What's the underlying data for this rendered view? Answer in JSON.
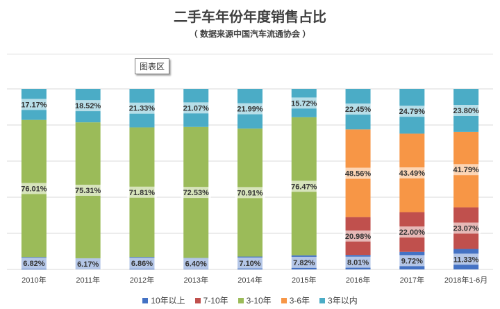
{
  "chart_data": {
    "type": "bar",
    "stacked": true,
    "title": "二手车年份年度销售占比",
    "subtitle": "（ 数据来源中国汽车流通协会 ）",
    "categories": [
      "2010年",
      "2011年",
      "2012年",
      "2013年",
      "2014年",
      "2015年",
      "2016年",
      "2017年",
      "2018年1-6月"
    ],
    "series": [
      {
        "name": "10年以上",
        "color": "#4472C4",
        "values": [
          6.82,
          6.17,
          6.86,
          6.4,
          7.1,
          7.82,
          8.01,
          9.72,
          11.33
        ]
      },
      {
        "name": "7-10年",
        "color": "#C0504D",
        "values": [
          null,
          null,
          null,
          null,
          null,
          null,
          20.98,
          22.0,
          23.07
        ]
      },
      {
        "name": "3-10年",
        "color": "#9BBB59",
        "values": [
          76.01,
          75.31,
          71.81,
          72.53,
          70.91,
          76.47,
          null,
          null,
          null
        ]
      },
      {
        "name": "3-6年",
        "color": "#F79646",
        "values": [
          null,
          null,
          null,
          null,
          null,
          null,
          48.56,
          43.49,
          41.79
        ]
      },
      {
        "name": "3年以内",
        "color": "#4BACC6",
        "values": [
          17.17,
          18.52,
          21.33,
          21.07,
          21.99,
          15.72,
          22.45,
          24.79,
          23.8
        ]
      }
    ],
    "ylim": [
      0,
      100
    ],
    "grid": true,
    "legend": "bottom"
  },
  "tooltip": {
    "label": "图表区"
  }
}
